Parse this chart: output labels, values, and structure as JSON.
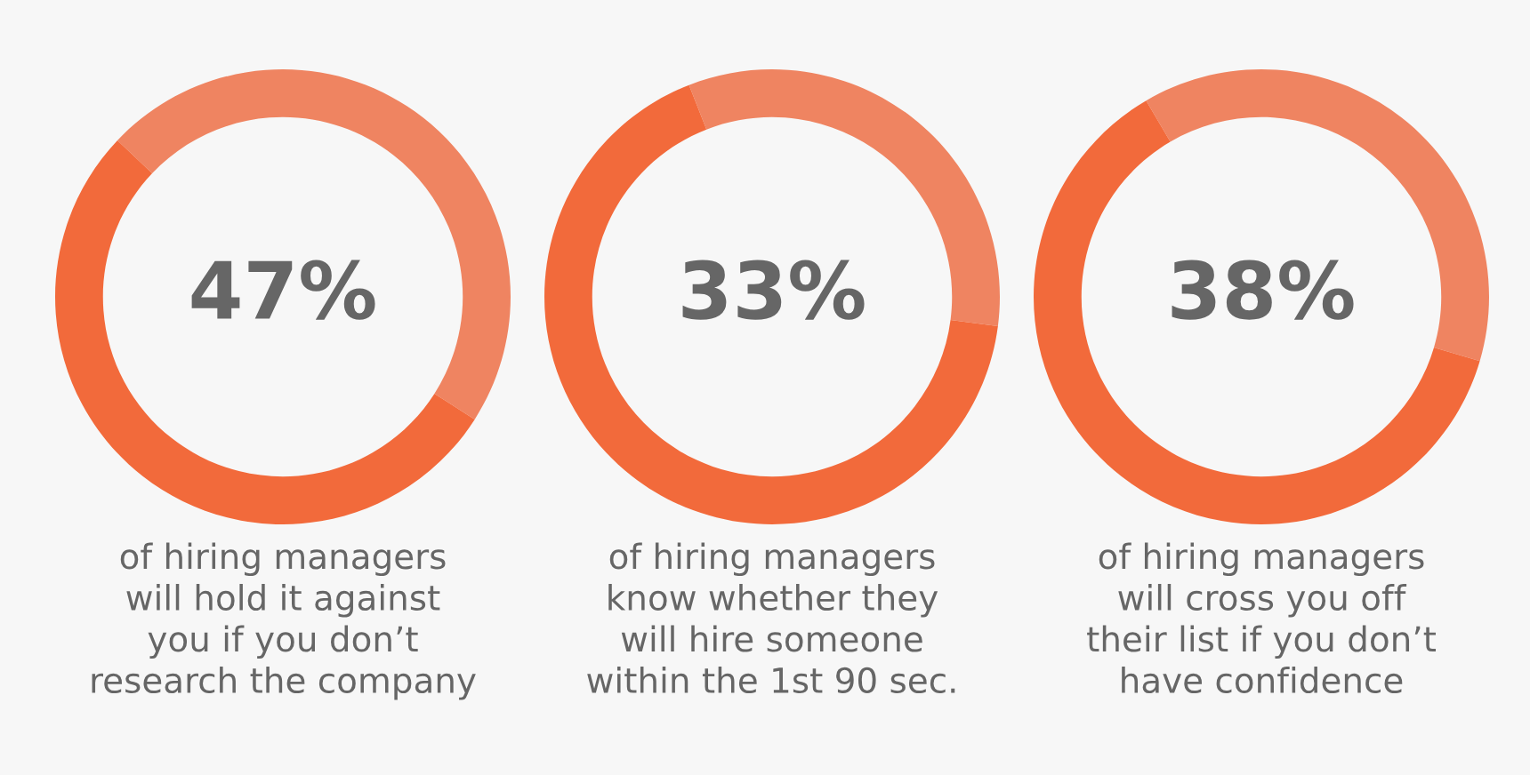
{
  "chart_data": [
    {
      "type": "donut",
      "categories": [
        null,
        null
      ],
      "values": [
        47,
        53
      ],
      "colors": [
        "#ef8461",
        "#f26a3b"
      ],
      "value_labels": [
        "47%",
        null
      ],
      "annotations": [
        "of hiring managers\nwill hold it against\nyou if you don’t\nresearch the company"
      ]
    },
    {
      "type": "donut",
      "categories": [
        null,
        null
      ],
      "values": [
        33,
        67
      ],
      "colors": [
        "#ef8461",
        "#f26a3b"
      ],
      "value_labels": [
        "33%",
        null
      ],
      "annotations": [
        "of hiring managers\nknow whether they\nwill hire someone\nwithin the 1st 90 sec."
      ]
    },
    {
      "type": "donut",
      "categories": [
        null,
        null
      ],
      "values": [
        38,
        62
      ],
      "colors": [
        "#ef8461",
        "#f26a3b"
      ],
      "value_labels": [
        "38%",
        null
      ],
      "annotations": [
        "of hiring managers\nwill cross you off\ntheir list if you don’t\nhave confidence"
      ]
    }
  ]
}
